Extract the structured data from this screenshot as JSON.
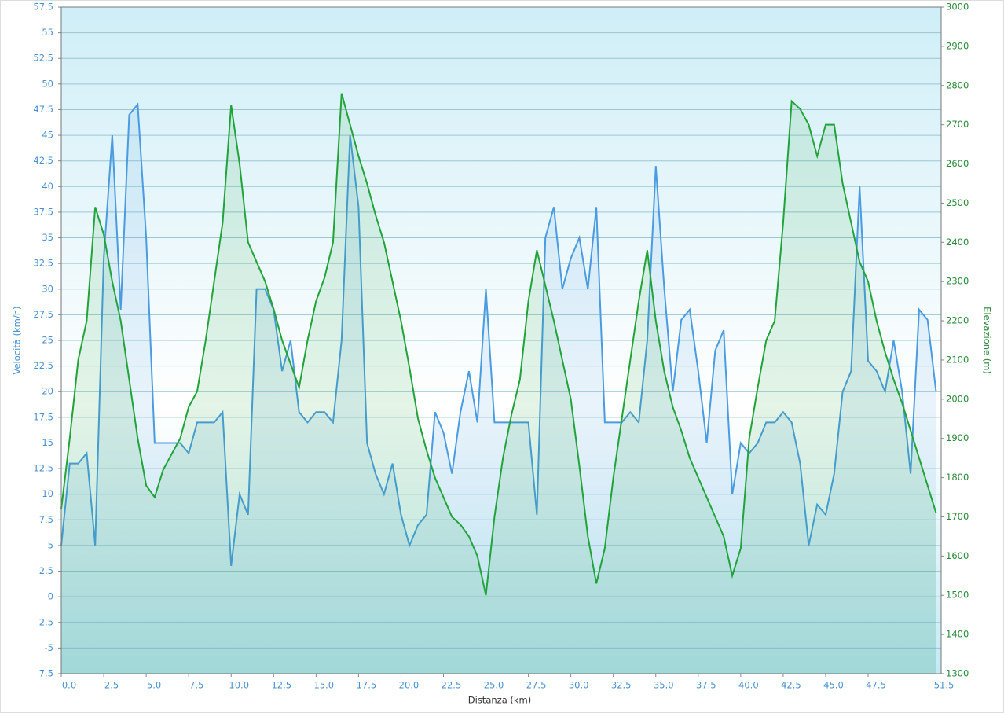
{
  "chart_data": {
    "type": "line",
    "xlabel": "Distanza  (km)",
    "ylabel": "Velocità (km/h)",
    "y2label": "Elevazione (m)",
    "xlim": [
      0,
      51.8
    ],
    "ylim": [
      -7.5,
      57.5
    ],
    "y2lim": [
      1300,
      3000
    ],
    "grid": true,
    "xticks": [
      {
        "value": 0,
        "label": "0.0"
      },
      2.5,
      {
        "value": 5,
        "label": "5.0"
      },
      7.5,
      {
        "value": 10,
        "label": "10.0"
      },
      12.5,
      {
        "value": 15,
        "label": "15.0"
      },
      17.5,
      {
        "value": 20,
        "label": "20.0"
      },
      22.5,
      {
        "value": 25,
        "label": "25.0"
      },
      27.5,
      {
        "value": 30,
        "label": "30.0"
      },
      32.5,
      {
        "value": 35,
        "label": "35.0"
      },
      37.5,
      {
        "value": 40,
        "label": "40.0"
      },
      42.5,
      {
        "value": 45,
        "label": "45.0"
      },
      47.5,
      51.5
    ],
    "yticks": [
      -7.5,
      -5,
      -2.5,
      0,
      2.5,
      5,
      7.5,
      10,
      12.5,
      15,
      17.5,
      20,
      22.5,
      25,
      27.5,
      30,
      32.5,
      35,
      37.5,
      40,
      42.5,
      45,
      47.5,
      50,
      52.5,
      55,
      57.5
    ],
    "y2ticks": [
      1300,
      1400,
      1500,
      1600,
      1700,
      1800,
      1900,
      2000,
      2100,
      2200,
      2300,
      2400,
      2500,
      2600,
      2700,
      2800,
      2900,
      3000
    ],
    "x": [
      0,
      0.5,
      1,
      1.5,
      2,
      2.5,
      3,
      3.5,
      4,
      4.5,
      5,
      5.5,
      6,
      6.5,
      7,
      7.5,
      8,
      8.5,
      9,
      9.5,
      10,
      10.5,
      11,
      11.5,
      12,
      12.5,
      13,
      13.5,
      14,
      14.5,
      15,
      15.5,
      16,
      16.5,
      17,
      17.5,
      18,
      18.5,
      19,
      19.5,
      20,
      20.5,
      21,
      21.5,
      22,
      22.5,
      23,
      23.5,
      24,
      24.5,
      25,
      25.5,
      26,
      26.5,
      27,
      27.5,
      28,
      28.5,
      29,
      29.5,
      30,
      30.5,
      31,
      31.5,
      32,
      32.5,
      33,
      33.5,
      34,
      34.5,
      35,
      35.5,
      36,
      36.5,
      37,
      37.5,
      38,
      38.5,
      39,
      39.5,
      40,
      40.5,
      41,
      41.5,
      42,
      42.5,
      43,
      43.5,
      44,
      44.5,
      45,
      45.5,
      46,
      46.5,
      47,
      47.5,
      48,
      48.5,
      49,
      49.5,
      50,
      50.5,
      51,
      51.5
    ],
    "series": [
      {
        "color": "#4a9be0",
        "values": [
          5,
          13,
          13,
          14,
          5,
          33,
          45,
          28,
          47,
          48,
          35,
          15,
          15,
          15,
          15,
          14,
          17,
          17,
          17,
          18,
          3,
          10,
          8,
          30,
          30,
          28,
          22,
          25,
          18,
          17,
          18,
          18,
          17,
          25,
          45,
          38,
          15,
          12,
          10,
          13,
          8,
          5,
          7,
          8,
          18,
          16,
          12,
          18,
          22,
          17,
          30,
          17,
          17,
          17,
          17,
          17,
          8,
          35,
          38,
          30,
          33,
          35,
          30,
          38,
          17,
          17,
          17,
          18,
          17,
          25,
          42,
          30,
          20,
          27,
          28,
          22,
          15,
          24,
          26,
          10,
          15,
          14,
          15,
          17,
          17,
          18,
          17,
          13,
          5,
          9,
          8,
          12,
          20,
          22,
          40,
          23,
          22,
          20,
          25,
          20,
          12,
          28,
          27,
          20
        ]
      },
      {
        "color": "#22a33a",
        "axis": "y2",
        "values": [
          1720,
          1900,
          2100,
          2200,
          2490,
          2420,
          2300,
          2200,
          2050,
          1900,
          1780,
          1750,
          1820,
          1860,
          1900,
          1980,
          2020,
          2150,
          2300,
          2450,
          2750,
          2600,
          2400,
          2350,
          2300,
          2230,
          2150,
          2090,
          2030,
          2150,
          2250,
          2310,
          2400,
          2780,
          2700,
          2620,
          2550,
          2470,
          2400,
          2300,
          2200,
          2080,
          1950,
          1870,
          1800,
          1750,
          1700,
          1680,
          1650,
          1600,
          1500,
          1700,
          1850,
          1960,
          2050,
          2250,
          2380,
          2290,
          2200,
          2100,
          2000,
          1830,
          1650,
          1530,
          1620,
          1800,
          1950,
          2100,
          2250,
          2380,
          2200,
          2070,
          1980,
          1920,
          1850,
          1800,
          1750,
          1700,
          1650,
          1550,
          1620,
          1900,
          2030,
          2150,
          2200,
          2450,
          2760,
          2740,
          2700,
          2620,
          2700,
          2700,
          2550,
          2450,
          2350,
          2300,
          2200,
          2120,
          2050,
          1990,
          1920,
          1850,
          1780,
          1710
        ]
      }
    ]
  }
}
